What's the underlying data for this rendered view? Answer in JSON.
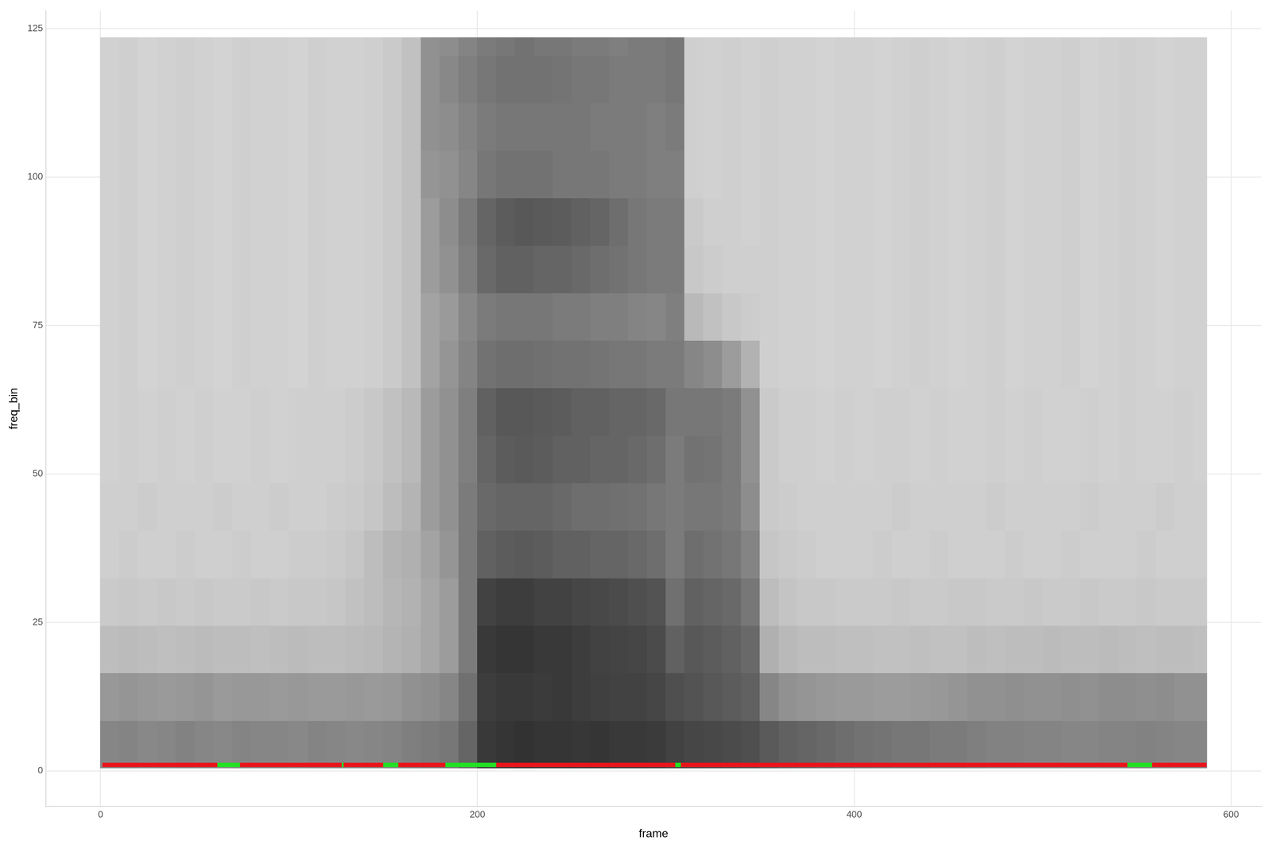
{
  "chart_data": {
    "type": "heatmap",
    "x_label": "frame",
    "y_label": "freq_bin",
    "xlim": [
      -29,
      616
    ],
    "ylim": [
      -6,
      128
    ],
    "xticks": [
      0,
      200,
      400,
      600
    ],
    "yticks": [
      0,
      25,
      50,
      75,
      100,
      125
    ],
    "grid": true,
    "legend": false,
    "heatmap": {
      "x_edges": [
        0,
        10,
        20,
        30,
        40,
        50,
        60,
        70,
        80,
        90,
        100,
        110,
        120,
        130,
        140,
        150,
        160,
        170,
        180,
        190,
        200,
        210,
        220,
        230,
        240,
        250,
        260,
        270,
        280,
        290,
        300,
        310,
        320,
        330,
        340,
        350,
        360,
        370,
        380,
        390,
        400,
        410,
        420,
        430,
        440,
        450,
        460,
        470,
        480,
        490,
        500,
        510,
        520,
        530,
        540,
        550,
        560,
        570,
        580,
        587
      ],
      "y_edges": [
        0.5,
        8.5,
        16.5,
        24.5,
        32.5,
        40.5,
        48.5,
        56.5,
        64.5,
        72.5,
        80.5,
        88.5,
        96.5,
        104.5,
        112.5,
        120.5,
        123.5
      ],
      "zlim": [
        0,
        1
      ],
      "z": [
        [
          0.55,
          0.56,
          0.54,
          0.55,
          0.57,
          0.55,
          0.54,
          0.56,
          0.55,
          0.55,
          0.54,
          0.56,
          0.55,
          0.54,
          0.55,
          0.56,
          0.58,
          0.6,
          0.62,
          0.7,
          0.9,
          0.92,
          0.93,
          0.92,
          0.92,
          0.91,
          0.92,
          0.9,
          0.9,
          0.89,
          0.86,
          0.84,
          0.83,
          0.82,
          0.8,
          0.75,
          0.72,
          0.7,
          0.68,
          0.66,
          0.64,
          0.63,
          0.62,
          0.62,
          0.6,
          0.6,
          0.58,
          0.57,
          0.57,
          0.56,
          0.56,
          0.55,
          0.55,
          0.56,
          0.56,
          0.57,
          0.56,
          0.55,
          0.55
        ],
        [
          0.47,
          0.48,
          0.47,
          0.46,
          0.47,
          0.48,
          0.46,
          0.47,
          0.47,
          0.46,
          0.47,
          0.46,
          0.46,
          0.47,
          0.46,
          0.47,
          0.5,
          0.52,
          0.55,
          0.65,
          0.88,
          0.9,
          0.9,
          0.89,
          0.9,
          0.88,
          0.87,
          0.86,
          0.86,
          0.84,
          0.8,
          0.78,
          0.76,
          0.74,
          0.72,
          0.55,
          0.5,
          0.48,
          0.47,
          0.46,
          0.46,
          0.45,
          0.45,
          0.46,
          0.47,
          0.48,
          0.5,
          0.5,
          0.51,
          0.5,
          0.5,
          0.51,
          0.5,
          0.52,
          0.52,
          0.51,
          0.52,
          0.5,
          0.5
        ],
        [
          0.3,
          0.31,
          0.3,
          0.29,
          0.3,
          0.31,
          0.3,
          0.3,
          0.29,
          0.3,
          0.31,
          0.3,
          0.3,
          0.31,
          0.32,
          0.34,
          0.36,
          0.4,
          0.45,
          0.6,
          0.9,
          0.92,
          0.92,
          0.9,
          0.9,
          0.88,
          0.86,
          0.85,
          0.84,
          0.82,
          0.72,
          0.76,
          0.74,
          0.72,
          0.68,
          0.36,
          0.32,
          0.3,
          0.3,
          0.29,
          0.29,
          0.28,
          0.28,
          0.29,
          0.28,
          0.28,
          0.3,
          0.29,
          0.3,
          0.3,
          0.31,
          0.3,
          0.3,
          0.31,
          0.3,
          0.29,
          0.3,
          0.3,
          0.29
        ],
        [
          0.24,
          0.25,
          0.24,
          0.25,
          0.24,
          0.25,
          0.24,
          0.24,
          0.25,
          0.24,
          0.25,
          0.25,
          0.26,
          0.28,
          0.3,
          0.33,
          0.35,
          0.4,
          0.45,
          0.6,
          0.86,
          0.88,
          0.88,
          0.86,
          0.86,
          0.84,
          0.83,
          0.82,
          0.8,
          0.78,
          0.65,
          0.72,
          0.7,
          0.68,
          0.62,
          0.3,
          0.27,
          0.25,
          0.25,
          0.24,
          0.24,
          0.24,
          0.25,
          0.24,
          0.24,
          0.25,
          0.25,
          0.24,
          0.24,
          0.25,
          0.24,
          0.24,
          0.25,
          0.24,
          0.24,
          0.25,
          0.24,
          0.24,
          0.24
        ],
        [
          0.22,
          0.23,
          0.22,
          0.22,
          0.23,
          0.22,
          0.22,
          0.23,
          0.22,
          0.22,
          0.23,
          0.23,
          0.24,
          0.26,
          0.3,
          0.34,
          0.36,
          0.42,
          0.48,
          0.6,
          0.72,
          0.74,
          0.75,
          0.74,
          0.72,
          0.72,
          0.7,
          0.7,
          0.68,
          0.66,
          0.6,
          0.66,
          0.64,
          0.62,
          0.56,
          0.26,
          0.24,
          0.23,
          0.22,
          0.22,
          0.22,
          0.23,
          0.22,
          0.22,
          0.23,
          0.22,
          0.22,
          0.22,
          0.23,
          0.22,
          0.22,
          0.23,
          0.22,
          0.22,
          0.22,
          0.23,
          0.22,
          0.22,
          0.22
        ],
        [
          0.22,
          0.22,
          0.23,
          0.22,
          0.22,
          0.22,
          0.23,
          0.22,
          0.22,
          0.23,
          0.22,
          0.22,
          0.23,
          0.24,
          0.26,
          0.3,
          0.34,
          0.45,
          0.5,
          0.6,
          0.68,
          0.7,
          0.7,
          0.7,
          0.68,
          0.66,
          0.66,
          0.65,
          0.64,
          0.62,
          0.6,
          0.62,
          0.62,
          0.6,
          0.52,
          0.24,
          0.23,
          0.22,
          0.22,
          0.22,
          0.22,
          0.22,
          0.23,
          0.22,
          0.22,
          0.22,
          0.22,
          0.23,
          0.22,
          0.22,
          0.22,
          0.22,
          0.23,
          0.22,
          0.22,
          0.22,
          0.23,
          0.22,
          0.22
        ],
        [
          0.21,
          0.22,
          0.21,
          0.22,
          0.21,
          0.22,
          0.21,
          0.21,
          0.22,
          0.21,
          0.22,
          0.22,
          0.22,
          0.23,
          0.25,
          0.28,
          0.32,
          0.45,
          0.5,
          0.58,
          0.7,
          0.74,
          0.75,
          0.74,
          0.72,
          0.72,
          0.7,
          0.7,
          0.68,
          0.66,
          0.6,
          0.64,
          0.63,
          0.6,
          0.5,
          0.24,
          0.22,
          0.22,
          0.21,
          0.22,
          0.21,
          0.22,
          0.22,
          0.21,
          0.22,
          0.21,
          0.21,
          0.22,
          0.21,
          0.22,
          0.21,
          0.21,
          0.22,
          0.21,
          0.22,
          0.21,
          0.21,
          0.22,
          0.21
        ],
        [
          0.21,
          0.22,
          0.21,
          0.22,
          0.21,
          0.22,
          0.21,
          0.21,
          0.22,
          0.21,
          0.22,
          0.22,
          0.22,
          0.23,
          0.25,
          0.28,
          0.32,
          0.45,
          0.5,
          0.58,
          0.72,
          0.76,
          0.76,
          0.75,
          0.74,
          0.72,
          0.72,
          0.7,
          0.7,
          0.68,
          0.62,
          0.62,
          0.62,
          0.6,
          0.5,
          0.24,
          0.22,
          0.22,
          0.21,
          0.22,
          0.21,
          0.22,
          0.22,
          0.21,
          0.22,
          0.21,
          0.21,
          0.22,
          0.21,
          0.22,
          0.21,
          0.21,
          0.22,
          0.21,
          0.22,
          0.21,
          0.21,
          0.22,
          0.21
        ],
        [
          0.21,
          0.22,
          0.2,
          0.21,
          0.22,
          0.21,
          0.2,
          0.22,
          0.21,
          0.21,
          0.2,
          0.22,
          0.21,
          0.21,
          0.22,
          0.24,
          0.28,
          0.42,
          0.48,
          0.56,
          0.64,
          0.66,
          0.66,
          0.65,
          0.64,
          0.64,
          0.63,
          0.62,
          0.62,
          0.6,
          0.6,
          0.55,
          0.52,
          0.45,
          0.35,
          0.22,
          0.21,
          0.21,
          0.2,
          0.21,
          0.21,
          0.2,
          0.21,
          0.22,
          0.21,
          0.2,
          0.21,
          0.22,
          0.2,
          0.21,
          0.21,
          0.22,
          0.2,
          0.21,
          0.22,
          0.21,
          0.2,
          0.21,
          0.21
        ],
        [
          0.21,
          0.22,
          0.2,
          0.21,
          0.22,
          0.21,
          0.2,
          0.22,
          0.21,
          0.21,
          0.2,
          0.22,
          0.21,
          0.21,
          0.22,
          0.24,
          0.28,
          0.42,
          0.46,
          0.54,
          0.6,
          0.62,
          0.62,
          0.62,
          0.6,
          0.6,
          0.58,
          0.58,
          0.56,
          0.55,
          0.58,
          0.32,
          0.28,
          0.25,
          0.23,
          0.22,
          0.21,
          0.21,
          0.2,
          0.21,
          0.21,
          0.2,
          0.21,
          0.22,
          0.21,
          0.2,
          0.21,
          0.22,
          0.2,
          0.21,
          0.21,
          0.22,
          0.2,
          0.21,
          0.22,
          0.21,
          0.2,
          0.21,
          0.21
        ],
        [
          0.21,
          0.22,
          0.2,
          0.21,
          0.22,
          0.21,
          0.2,
          0.22,
          0.21,
          0.21,
          0.2,
          0.22,
          0.21,
          0.21,
          0.22,
          0.24,
          0.28,
          0.45,
          0.5,
          0.58,
          0.68,
          0.72,
          0.72,
          0.7,
          0.7,
          0.68,
          0.66,
          0.64,
          0.62,
          0.6,
          0.6,
          0.25,
          0.23,
          0.22,
          0.22,
          0.22,
          0.21,
          0.21,
          0.2,
          0.21,
          0.21,
          0.2,
          0.21,
          0.22,
          0.21,
          0.2,
          0.21,
          0.22,
          0.2,
          0.21,
          0.21,
          0.22,
          0.2,
          0.21,
          0.22,
          0.21,
          0.2,
          0.21,
          0.21
        ],
        [
          0.21,
          0.22,
          0.2,
          0.21,
          0.22,
          0.21,
          0.2,
          0.22,
          0.21,
          0.21,
          0.2,
          0.22,
          0.21,
          0.21,
          0.22,
          0.24,
          0.28,
          0.45,
          0.52,
          0.6,
          0.7,
          0.74,
          0.76,
          0.75,
          0.74,
          0.72,
          0.7,
          0.66,
          0.62,
          0.6,
          0.6,
          0.24,
          0.22,
          0.22,
          0.21,
          0.22,
          0.21,
          0.21,
          0.2,
          0.21,
          0.21,
          0.2,
          0.21,
          0.22,
          0.21,
          0.2,
          0.21,
          0.22,
          0.2,
          0.21,
          0.21,
          0.22,
          0.2,
          0.21,
          0.22,
          0.21,
          0.2,
          0.21,
          0.21
        ],
        [
          0.21,
          0.22,
          0.2,
          0.21,
          0.22,
          0.21,
          0.2,
          0.22,
          0.21,
          0.21,
          0.2,
          0.22,
          0.21,
          0.21,
          0.22,
          0.24,
          0.28,
          0.48,
          0.5,
          0.55,
          0.62,
          0.64,
          0.64,
          0.64,
          0.62,
          0.62,
          0.62,
          0.6,
          0.6,
          0.58,
          0.58,
          0.22,
          0.21,
          0.22,
          0.21,
          0.22,
          0.21,
          0.21,
          0.2,
          0.21,
          0.21,
          0.2,
          0.21,
          0.22,
          0.21,
          0.2,
          0.21,
          0.22,
          0.2,
          0.21,
          0.21,
          0.22,
          0.2,
          0.21,
          0.22,
          0.21,
          0.2,
          0.21,
          0.21
        ],
        [
          0.21,
          0.22,
          0.2,
          0.21,
          0.22,
          0.21,
          0.2,
          0.22,
          0.21,
          0.21,
          0.2,
          0.22,
          0.21,
          0.21,
          0.22,
          0.24,
          0.28,
          0.5,
          0.52,
          0.56,
          0.6,
          0.62,
          0.62,
          0.62,
          0.62,
          0.62,
          0.6,
          0.6,
          0.6,
          0.58,
          0.6,
          0.22,
          0.21,
          0.22,
          0.21,
          0.22,
          0.21,
          0.21,
          0.2,
          0.21,
          0.21,
          0.2,
          0.21,
          0.22,
          0.21,
          0.2,
          0.21,
          0.22,
          0.2,
          0.21,
          0.21,
          0.22,
          0.2,
          0.21,
          0.22,
          0.21,
          0.2,
          0.21,
          0.21
        ],
        [
          0.21,
          0.22,
          0.2,
          0.21,
          0.22,
          0.21,
          0.2,
          0.22,
          0.21,
          0.21,
          0.2,
          0.22,
          0.21,
          0.21,
          0.22,
          0.24,
          0.28,
          0.5,
          0.54,
          0.58,
          0.62,
          0.64,
          0.64,
          0.64,
          0.63,
          0.62,
          0.62,
          0.6,
          0.6,
          0.6,
          0.62,
          0.22,
          0.21,
          0.22,
          0.21,
          0.22,
          0.21,
          0.21,
          0.2,
          0.21,
          0.21,
          0.2,
          0.21,
          0.22,
          0.21,
          0.2,
          0.21,
          0.22,
          0.2,
          0.21,
          0.21,
          0.22,
          0.2,
          0.21,
          0.22,
          0.21,
          0.2,
          0.21,
          0.21
        ],
        [
          0.21,
          0.22,
          0.2,
          0.21,
          0.22,
          0.21,
          0.2,
          0.22,
          0.21,
          0.21,
          0.2,
          0.22,
          0.21,
          0.21,
          0.22,
          0.24,
          0.28,
          0.5,
          0.52,
          0.56,
          0.6,
          0.62,
          0.64,
          0.62,
          0.62,
          0.6,
          0.6,
          0.58,
          0.6,
          0.6,
          0.62,
          0.22,
          0.21,
          0.22,
          0.21,
          0.22,
          0.21,
          0.21,
          0.2,
          0.21,
          0.21,
          0.2,
          0.21,
          0.22,
          0.21,
          0.2,
          0.21,
          0.22,
          0.2,
          0.21,
          0.21,
          0.22,
          0.2,
          0.21,
          0.22,
          0.21,
          0.2,
          0.21,
          0.21
        ]
      ]
    },
    "line_y": 1,
    "segments": [
      {
        "x": [
          1,
          62
        ],
        "color": "#e8141c"
      },
      {
        "x": [
          62,
          74
        ],
        "color": "#22e022"
      },
      {
        "x": [
          74,
          128
        ],
        "color": "#e8141c"
      },
      {
        "x": [
          128,
          129
        ],
        "color": "#22e022"
      },
      {
        "x": [
          129,
          150
        ],
        "color": "#e8141c"
      },
      {
        "x": [
          150,
          158
        ],
        "color": "#22e022"
      },
      {
        "x": [
          158,
          183
        ],
        "color": "#e8141c"
      },
      {
        "x": [
          183,
          210
        ],
        "color": "#22e022"
      },
      {
        "x": [
          210,
          305
        ],
        "color": "#e8141c"
      },
      {
        "x": [
          305,
          308
        ],
        "color": "#22e022"
      },
      {
        "x": [
          308,
          545
        ],
        "color": "#e8141c"
      },
      {
        "x": [
          545,
          558
        ],
        "color": "#22e022"
      },
      {
        "x": [
          558,
          587
        ],
        "color": "#e8141c"
      }
    ]
  }
}
